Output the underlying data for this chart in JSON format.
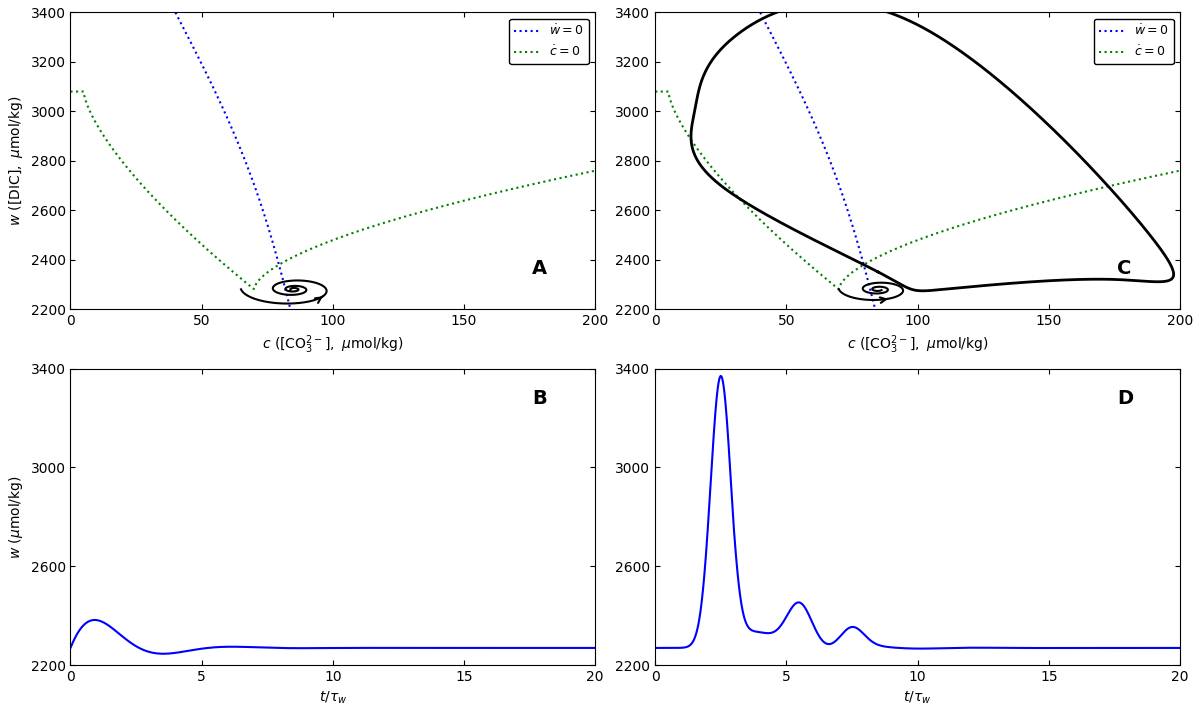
{
  "xlim": [
    0,
    200
  ],
  "ylim": [
    2200,
    3400
  ],
  "xticks": [
    0,
    50,
    100,
    150,
    200
  ],
  "yticks_phase": [
    2200,
    2400,
    2600,
    2800,
    3000,
    3200,
    3400
  ],
  "yticks_ts": [
    2200,
    2600,
    3000,
    3400
  ],
  "xlabel_phase": "c ($[\\mathrm{CO}_3^{2-}]$, $\\mu$mol/kg)",
  "ylabel_phase": "w ($[\\mathrm{DIC}]$, $\\mu$mol/kg)",
  "xlabel_ts": "$t/\\tau_w$",
  "ylabel_ts": "w ($\\mu$mol/kg)",
  "xlim_ts": [
    0,
    20
  ],
  "xticks_ts": [
    0,
    5,
    10,
    15,
    20
  ],
  "blue_color": "#0000FF",
  "green_color": "#008000",
  "black_color": "#000000",
  "label_A": "A",
  "label_B": "B",
  "label_C": "C",
  "label_D": "D"
}
